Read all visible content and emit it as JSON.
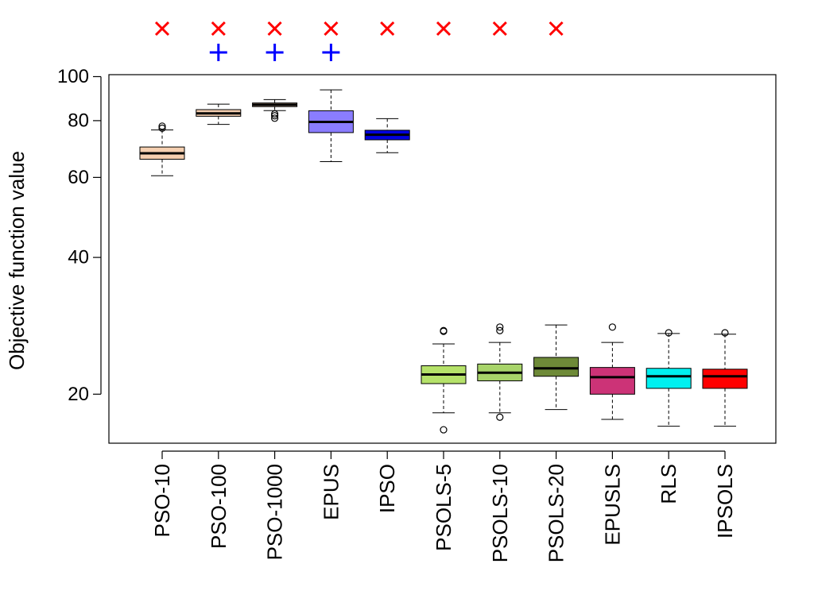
{
  "chart_data": {
    "type": "boxplot",
    "ylabel": "Objective function value",
    "xlabel": "",
    "yscale": "log",
    "ylim": [
      15.6,
      101
    ],
    "yticks": [
      20,
      40,
      60,
      80,
      100
    ],
    "grid": false,
    "legend": "none",
    "categories": [
      "PSO-10",
      "PSO-100",
      "PSO-1000",
      "EPUS",
      "IPSO",
      "PSOLS-5",
      "PSOLS-10",
      "PSOLS-20",
      "EPUSLS",
      "RLS",
      "IPSOLS"
    ],
    "boxes": [
      {
        "name": "PSO-10",
        "color": "#f5cfb0",
        "whisker_low": 60.5,
        "q1": 65.8,
        "median": 67.8,
        "q3": 70.0,
        "whisker_high": 76.3,
        "outliers": [
          77.0,
          77.8
        ]
      },
      {
        "name": "PSO-100",
        "color": "#f5cfb0",
        "whisker_low": 78.5,
        "q1": 81.8,
        "median": 83.0,
        "q3": 84.6,
        "whisker_high": 87.0,
        "outliers": []
      },
      {
        "name": "PSO-1000",
        "color": "#f5cfb0",
        "whisker_low": 84.2,
        "q1": 85.9,
        "median": 86.7,
        "q3": 87.5,
        "whisker_high": 89.0,
        "outliers": [
          81.0,
          82.0,
          82.8
        ]
      },
      {
        "name": "EPUS",
        "color": "#8a7dff",
        "whisker_low": 65.0,
        "q1": 75.3,
        "median": 79.5,
        "q3": 84.1,
        "whisker_high": 93.5,
        "outliers": []
      },
      {
        "name": "IPSO",
        "color": "#0000e0",
        "whisker_low": 68.0,
        "q1": 72.6,
        "median": 74.5,
        "q3": 76.2,
        "whisker_high": 80.8,
        "outliers": []
      },
      {
        "name": "PSOLS-5",
        "color": "#b5e26a",
        "whisker_low": 18.2,
        "q1": 21.1,
        "median": 22.1,
        "q3": 23.1,
        "whisker_high": 25.8,
        "outliers": [
          27.5,
          27.6,
          16.7
        ]
      },
      {
        "name": "PSOLS-10",
        "color": "#a8d46a",
        "whisker_low": 18.2,
        "q1": 21.4,
        "median": 22.3,
        "q3": 23.3,
        "whisker_high": 26.0,
        "outliers": [
          27.6,
          28.1,
          17.8
        ]
      },
      {
        "name": "PSOLS-20",
        "color": "#6e8a38",
        "whisker_low": 18.5,
        "q1": 21.9,
        "median": 22.8,
        "q3": 24.1,
        "whisker_high": 28.4,
        "outliers": []
      },
      {
        "name": "EPUSLS",
        "color": "#cc3377",
        "whisker_low": 17.6,
        "q1": 20.0,
        "median": 21.8,
        "q3": 22.9,
        "whisker_high": 26.0,
        "outliers": [
          28.1
        ]
      },
      {
        "name": "RLS",
        "color": "#00f0f0",
        "whisker_low": 17.0,
        "q1": 20.6,
        "median": 21.9,
        "q3": 22.8,
        "whisker_high": 27.2,
        "outliers": [
          27.3
        ]
      },
      {
        "name": "IPSOLS",
        "color": "#ff0000",
        "whisker_low": 17.0,
        "q1": 20.6,
        "median": 21.9,
        "q3": 22.7,
        "whisker_high": 27.1,
        "outliers": [
          27.3
        ]
      }
    ],
    "markers_top": [
      {
        "category": "PSO-10",
        "symbols": [
          "×"
        ]
      },
      {
        "category": "PSO-100",
        "symbols": [
          "×",
          "+"
        ]
      },
      {
        "category": "PSO-1000",
        "symbols": [
          "×",
          "+"
        ]
      },
      {
        "category": "EPUS",
        "symbols": [
          "×",
          "+"
        ]
      },
      {
        "category": "IPSO",
        "symbols": [
          "×"
        ]
      },
      {
        "category": "PSOLS-5",
        "symbols": [
          "×"
        ]
      },
      {
        "category": "PSOLS-10",
        "symbols": [
          "×"
        ]
      },
      {
        "category": "PSOLS-20",
        "symbols": [
          "×"
        ]
      }
    ],
    "marker_colors": {
      "×": "#ff0000",
      "+": "#0000ff"
    }
  }
}
